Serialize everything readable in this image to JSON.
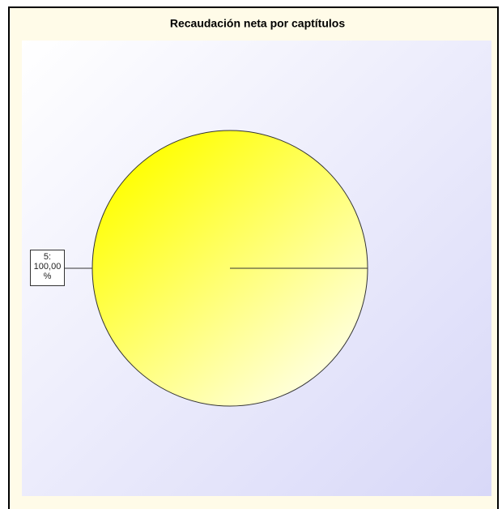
{
  "chart_data": {
    "type": "pie",
    "title": "Recaudación neta por captítulos",
    "categories": [
      "5:"
    ],
    "values": [
      100
    ],
    "value_labels": [
      "100,00 %"
    ],
    "colors": [
      "#ffff00"
    ]
  }
}
